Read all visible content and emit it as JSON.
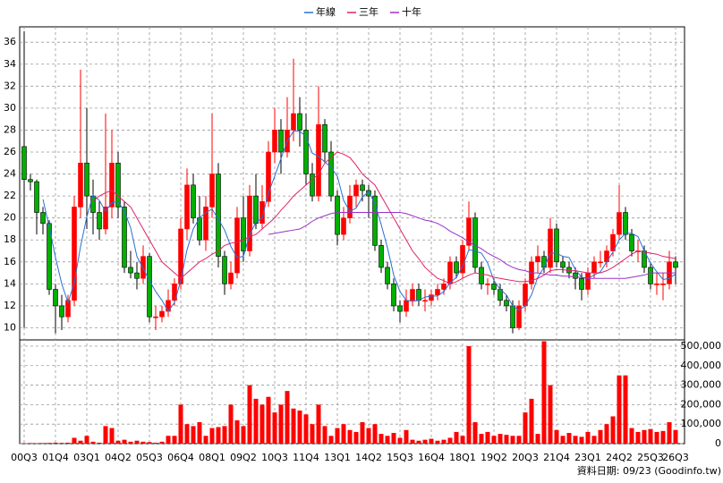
{
  "chart_data": {
    "type": "candlestick",
    "legend_position": "top",
    "grid": true,
    "up_color": "#ff0000",
    "down_color": "#00b000",
    "volume_color": "#ff0000",
    "footnote": "資料日期: 09/23 (Goodinfo.tw)",
    "ylim": [
      8.9,
      37.4
    ],
    "yticks": [
      10,
      12,
      14,
      16,
      18,
      20,
      22,
      24,
      26,
      28,
      30,
      32,
      34,
      36
    ],
    "y2lim": [
      0,
      532000
    ],
    "y2ticks": [
      0,
      {
        "value": 100000,
        "label": "100,000"
      },
      {
        "value": 200000,
        "label": "200,000"
      },
      {
        "value": 300000,
        "label": "300,000"
      },
      {
        "value": 400000,
        "label": "400,000"
      },
      {
        "value": 500000,
        "label": "500,000"
      }
    ],
    "categories": [
      "00Q3",
      null,
      null,
      null,
      null,
      "01Q4",
      null,
      null,
      null,
      null,
      "03Q1",
      null,
      null,
      null,
      null,
      "04Q2",
      null,
      null,
      null,
      null,
      "05Q3",
      null,
      null,
      null,
      null,
      "06Q4",
      null,
      null,
      null,
      null,
      "08Q1",
      null,
      null,
      null,
      null,
      "09Q2",
      null,
      null,
      null,
      null,
      "10Q3",
      null,
      null,
      null,
      null,
      "11Q4",
      null,
      null,
      null,
      null,
      "13Q1",
      null,
      null,
      null,
      null,
      "14Q2",
      null,
      null,
      null,
      null,
      "15Q3",
      null,
      null,
      null,
      null,
      "16Q4",
      null,
      null,
      null,
      null,
      "18Q1",
      null,
      null,
      null,
      null,
      "19Q2",
      null,
      null,
      null,
      null,
      "20Q3",
      null,
      null,
      null,
      null,
      "21Q4",
      null,
      null,
      null,
      null,
      "23Q1",
      null,
      null,
      null,
      null,
      "24Q2",
      null,
      null,
      null,
      null,
      "25Q3",
      null,
      null,
      null,
      "26Q3"
    ],
    "ohlc": [
      [
        26.5,
        37,
        10,
        23.5
      ],
      [
        23.5,
        24,
        22.5,
        23.3
      ],
      [
        23.3,
        23.5,
        18.5,
        20.5
      ],
      [
        20.5,
        21,
        18.5,
        19.5
      ],
      [
        19.5,
        19.8,
        13,
        13.5
      ],
      [
        13.5,
        14,
        9.5,
        12
      ],
      [
        12,
        13,
        9.8,
        11
      ],
      [
        11,
        13,
        10.5,
        12.5
      ],
      [
        12.5,
        22,
        12,
        21
      ],
      [
        21,
        33.5,
        20,
        25
      ],
      [
        25,
        30,
        19,
        22
      ],
      [
        22,
        23.5,
        18.5,
        20.5
      ],
      [
        20.5,
        21.5,
        18,
        19
      ],
      [
        19,
        29.5,
        18.5,
        21
      ],
      [
        21,
        28,
        20,
        25
      ],
      [
        25,
        26,
        20,
        21
      ],
      [
        21,
        21.5,
        15,
        15.5
      ],
      [
        15.5,
        17,
        14.5,
        15
      ],
      [
        15,
        16,
        13.5,
        14.5
      ],
      [
        14.5,
        17.5,
        14,
        16.5
      ],
      [
        16.5,
        16.8,
        10.5,
        11
      ],
      [
        11,
        12,
        9.8,
        11
      ],
      [
        11,
        12,
        10.5,
        11.5
      ],
      [
        11.5,
        13.5,
        11,
        12.5
      ],
      [
        12.5,
        14.5,
        12,
        14
      ],
      [
        14,
        20,
        13.5,
        19
      ],
      [
        19,
        24.5,
        18,
        23
      ],
      [
        23,
        24,
        19.5,
        20
      ],
      [
        20,
        22,
        17.5,
        18
      ],
      [
        18,
        22,
        17,
        21
      ],
      [
        21,
        29.5,
        20,
        24
      ],
      [
        24,
        25,
        15.5,
        16.5
      ],
      [
        16.5,
        17,
        13,
        14
      ],
      [
        14,
        16,
        13.5,
        15
      ],
      [
        15,
        21,
        14.5,
        20
      ],
      [
        20,
        22,
        16,
        17
      ],
      [
        17,
        23,
        16.5,
        22
      ],
      [
        22,
        24,
        19,
        19.5
      ],
      [
        19.5,
        23,
        19,
        21.5
      ],
      [
        21.5,
        27,
        21,
        26
      ],
      [
        26,
        30,
        25,
        28
      ],
      [
        28,
        29,
        24,
        26
      ],
      [
        26,
        31,
        25.5,
        28
      ],
      [
        28,
        34.5,
        27,
        29.5
      ],
      [
        29.5,
        31,
        26.5,
        28
      ],
      [
        28,
        29.5,
        23,
        24
      ],
      [
        24,
        25,
        21.5,
        22
      ],
      [
        22,
        32,
        21.5,
        28.5
      ],
      [
        28.5,
        29,
        25,
        26
      ],
      [
        26,
        27,
        21.5,
        22
      ],
      [
        22,
        22.5,
        17.5,
        18.5
      ],
      [
        18.5,
        21,
        18,
        20
      ],
      [
        20,
        23,
        19.5,
        22
      ],
      [
        22,
        23.5,
        21,
        23
      ],
      [
        23,
        23.5,
        21.5,
        22.5
      ],
      [
        22.5,
        23,
        20,
        22
      ],
      [
        22,
        22.5,
        17,
        17.5
      ],
      [
        17.5,
        18,
        15,
        15.5
      ],
      [
        15.5,
        16,
        13.5,
        14
      ],
      [
        14,
        14.5,
        11.5,
        12
      ],
      [
        12,
        12.5,
        10.5,
        11.5
      ],
      [
        11.5,
        13.5,
        11,
        12.5
      ],
      [
        12.5,
        14,
        12,
        13.5
      ],
      [
        13.5,
        14,
        12,
        12.5
      ],
      [
        12.5,
        13.5,
        11.5,
        12.5
      ],
      [
        12.5,
        13.5,
        12,
        13
      ],
      [
        13,
        14,
        12.5,
        13.5
      ],
      [
        13.5,
        14.5,
        13,
        14
      ],
      [
        14,
        16.5,
        13.5,
        16
      ],
      [
        16,
        16.5,
        14.5,
        15
      ],
      [
        15,
        18,
        14.5,
        17.5
      ],
      [
        17.5,
        21.5,
        17,
        20
      ],
      [
        20,
        20.5,
        15,
        15.5
      ],
      [
        15.5,
        16,
        13.5,
        14
      ],
      [
        14,
        14.5,
        13,
        14
      ],
      [
        14,
        14.5,
        13,
        13.5
      ],
      [
        13.5,
        14,
        12,
        12.5
      ],
      [
        12.5,
        13,
        11.5,
        12
      ],
      [
        12,
        12.5,
        9.5,
        10
      ],
      [
        10,
        12.5,
        9.8,
        12
      ],
      [
        12,
        14.5,
        11.5,
        14
      ],
      [
        14,
        16.5,
        13.5,
        16
      ],
      [
        16,
        17.5,
        15,
        16.5
      ],
      [
        16.5,
        17,
        15,
        15.5
      ],
      [
        15.5,
        20,
        15,
        19
      ],
      [
        19,
        19.5,
        15.5,
        16
      ],
      [
        16,
        16.5,
        15,
        15.5
      ],
      [
        15.5,
        16,
        14.5,
        15
      ],
      [
        15,
        15.5,
        13.5,
        14.5
      ],
      [
        14.5,
        15,
        12.5,
        13.5
      ],
      [
        13.5,
        15.5,
        13,
        15
      ],
      [
        15,
        16.5,
        14.5,
        16
      ],
      [
        16,
        17,
        15.5,
        16
      ],
      [
        16,
        17.5,
        15.5,
        17
      ],
      [
        17,
        19,
        16.5,
        18.5
      ],
      [
        18.5,
        23,
        18,
        20.5
      ],
      [
        20.5,
        21,
        18,
        18.5
      ],
      [
        18.5,
        19,
        16.5,
        17
      ],
      [
        17,
        18,
        16,
        17
      ],
      [
        17,
        17.5,
        15,
        15.5
      ],
      [
        15.5,
        16,
        13.5,
        14
      ],
      [
        14,
        15,
        13,
        14
      ],
      [
        14,
        15,
        12.5,
        14
      ],
      [
        14,
        17,
        13.5,
        16
      ],
      [
        16,
        16.5,
        14,
        15.5
      ]
    ],
    "volume": [
      2000,
      3000,
      2500,
      3000,
      4000,
      5000,
      4000,
      5000,
      30000,
      15000,
      40000,
      10000,
      5000,
      90000,
      80000,
      15000,
      20000,
      10000,
      15000,
      10000,
      8000,
      5000,
      10000,
      40000,
      40000,
      200000,
      100000,
      90000,
      110000,
      40000,
      80000,
      85000,
      90000,
      200000,
      120000,
      90000,
      300000,
      230000,
      200000,
      240000,
      160000,
      200000,
      270000,
      180000,
      170000,
      150000,
      100000,
      200000,
      90000,
      40000,
      80000,
      100000,
      70000,
      60000,
      110000,
      80000,
      100000,
      50000,
      40000,
      55000,
      30000,
      70000,
      20000,
      15000,
      20000,
      25000,
      15000,
      20000,
      30000,
      60000,
      40000,
      500000,
      110000,
      50000,
      60000,
      40000,
      50000,
      45000,
      40000,
      40000,
      160000,
      230000,
      50000,
      525000,
      300000,
      70000,
      40000,
      55000,
      40000,
      35000,
      60000,
      40000,
      70000,
      100000,
      140000,
      350000,
      350000,
      80000,
      60000,
      70000,
      75000,
      60000,
      65000,
      110000,
      70000
    ],
    "series": [
      {
        "name": "年線",
        "color": "#2a6fd6",
        "values": [
          null,
          null,
          null,
          21.7,
          19.2,
          16.4,
          14,
          12.3,
          14.1,
          17.4,
          20.1,
          22.1,
          21.6,
          20.6,
          21.4,
          21.5,
          20.6,
          19.1,
          16.5,
          15.4,
          14.3,
          13.3,
          12.5,
          11.5,
          12.3,
          14.3,
          17.1,
          19,
          20,
          20.5,
          20.8,
          19.9,
          18.9,
          17.4,
          16.4,
          16.5,
          18.5,
          19.6,
          20,
          22.3,
          23.8,
          25.4,
          27,
          27.9,
          27.9,
          27.4,
          25.9,
          25.6,
          25.1,
          24.6,
          23.8,
          21.6,
          20.6,
          20.9,
          21.9,
          22.4,
          21.3,
          19.4,
          17.3,
          14.8,
          13.3,
          12.5,
          12.4,
          12.5,
          12.8,
          12.9,
          12.9,
          13.3,
          14.1,
          14.6,
          15.6,
          17.1,
          17,
          16.8,
          15.9,
          14.3,
          13.5,
          13,
          12,
          11.6,
          12,
          13,
          14.6,
          15.5,
          16.8,
          16.8,
          16.5,
          16.4,
          15.3,
          14.6,
          14.5,
          14.8,
          15.1,
          16,
          16.9,
          18,
          18.6,
          18.6,
          18.3,
          17,
          15.9,
          15.1,
          14.4,
          14.5,
          14.9
        ]
      },
      {
        "name": "三年",
        "color": "#e0206a",
        "values": [
          null,
          null,
          null,
          null,
          null,
          null,
          null,
          null,
          null,
          null,
          null,
          21.5,
          22,
          22.3,
          22.5,
          22,
          21.5,
          21,
          20,
          19,
          18,
          17,
          16,
          15.5,
          15,
          14.5,
          15,
          15.5,
          16,
          16.3,
          16.7,
          17,
          17.5,
          17.7,
          17.8,
          18,
          18.3,
          18.5,
          19,
          19.5,
          20,
          20.7,
          21.3,
          22,
          22.5,
          23,
          23.5,
          24,
          25,
          25.5,
          26,
          25.8,
          25.5,
          24.8,
          24,
          23.5,
          23,
          22,
          21,
          20,
          19,
          18,
          17,
          16.3,
          15.5,
          15,
          14.5,
          14.3,
          14,
          14.2,
          14.5,
          14.8,
          15,
          14.9,
          14.8,
          14.6,
          14.5,
          14.4,
          14.3,
          14.2,
          14.2,
          14.3,
          14.5,
          14.8,
          15.2,
          15.3,
          15.3,
          15.2,
          15.2,
          15.1,
          15,
          15,
          15,
          15.2,
          15.5,
          15.9,
          16.3,
          16.7,
          17,
          16.9,
          16.8,
          16.7,
          16.5,
          16.4,
          16.3
        ]
      },
      {
        "name": "十年",
        "color": "#9b30c8",
        "values": [
          null,
          null,
          null,
          null,
          null,
          null,
          null,
          null,
          null,
          null,
          null,
          null,
          null,
          null,
          null,
          null,
          null,
          null,
          null,
          null,
          null,
          null,
          null,
          null,
          null,
          null,
          null,
          null,
          null,
          null,
          null,
          null,
          null,
          null,
          null,
          null,
          null,
          null,
          null,
          18.5,
          18.6,
          18.7,
          18.8,
          18.9,
          19,
          19.3,
          19.7,
          20,
          20.2,
          20.4,
          20.5,
          20.5,
          20.5,
          20.5,
          20.5,
          20.5,
          20.5,
          20.5,
          20.5,
          20.5,
          20.5,
          20.4,
          20.2,
          20,
          19.8,
          19.7,
          19.5,
          19.2,
          18.8,
          18.5,
          18.2,
          17.8,
          17.5,
          17.2,
          16.8,
          16.5,
          16.2,
          15.8,
          15.5,
          15.3,
          15.2,
          15,
          15,
          14.9,
          14.8,
          14.8,
          14.7,
          14.7,
          14.6,
          14.6,
          14.5,
          14.5,
          14.5,
          14.5,
          14.5,
          14.5,
          14.5,
          14.6,
          14.7,
          14.8,
          15,
          15,
          15,
          15,
          15
        ]
      }
    ]
  }
}
